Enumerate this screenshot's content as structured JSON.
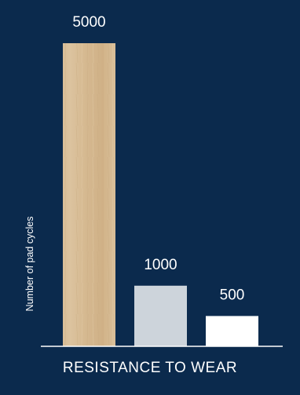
{
  "chart_data": {
    "type": "bar",
    "categories": [
      "",
      "",
      ""
    ],
    "values": [
      5000,
      1000,
      500
    ],
    "title": "RESISTANCE TO WEAR",
    "xlabel": "",
    "ylabel": "Number of pad cycles",
    "ylim": [
      0,
      5000
    ],
    "grid": false,
    "legend": "none",
    "bar_colors": [
      "#d8bd96",
      "#cdd4db",
      "#ffffff"
    ],
    "background": "#0b2a4d",
    "axis_color": "#ffffff"
  }
}
